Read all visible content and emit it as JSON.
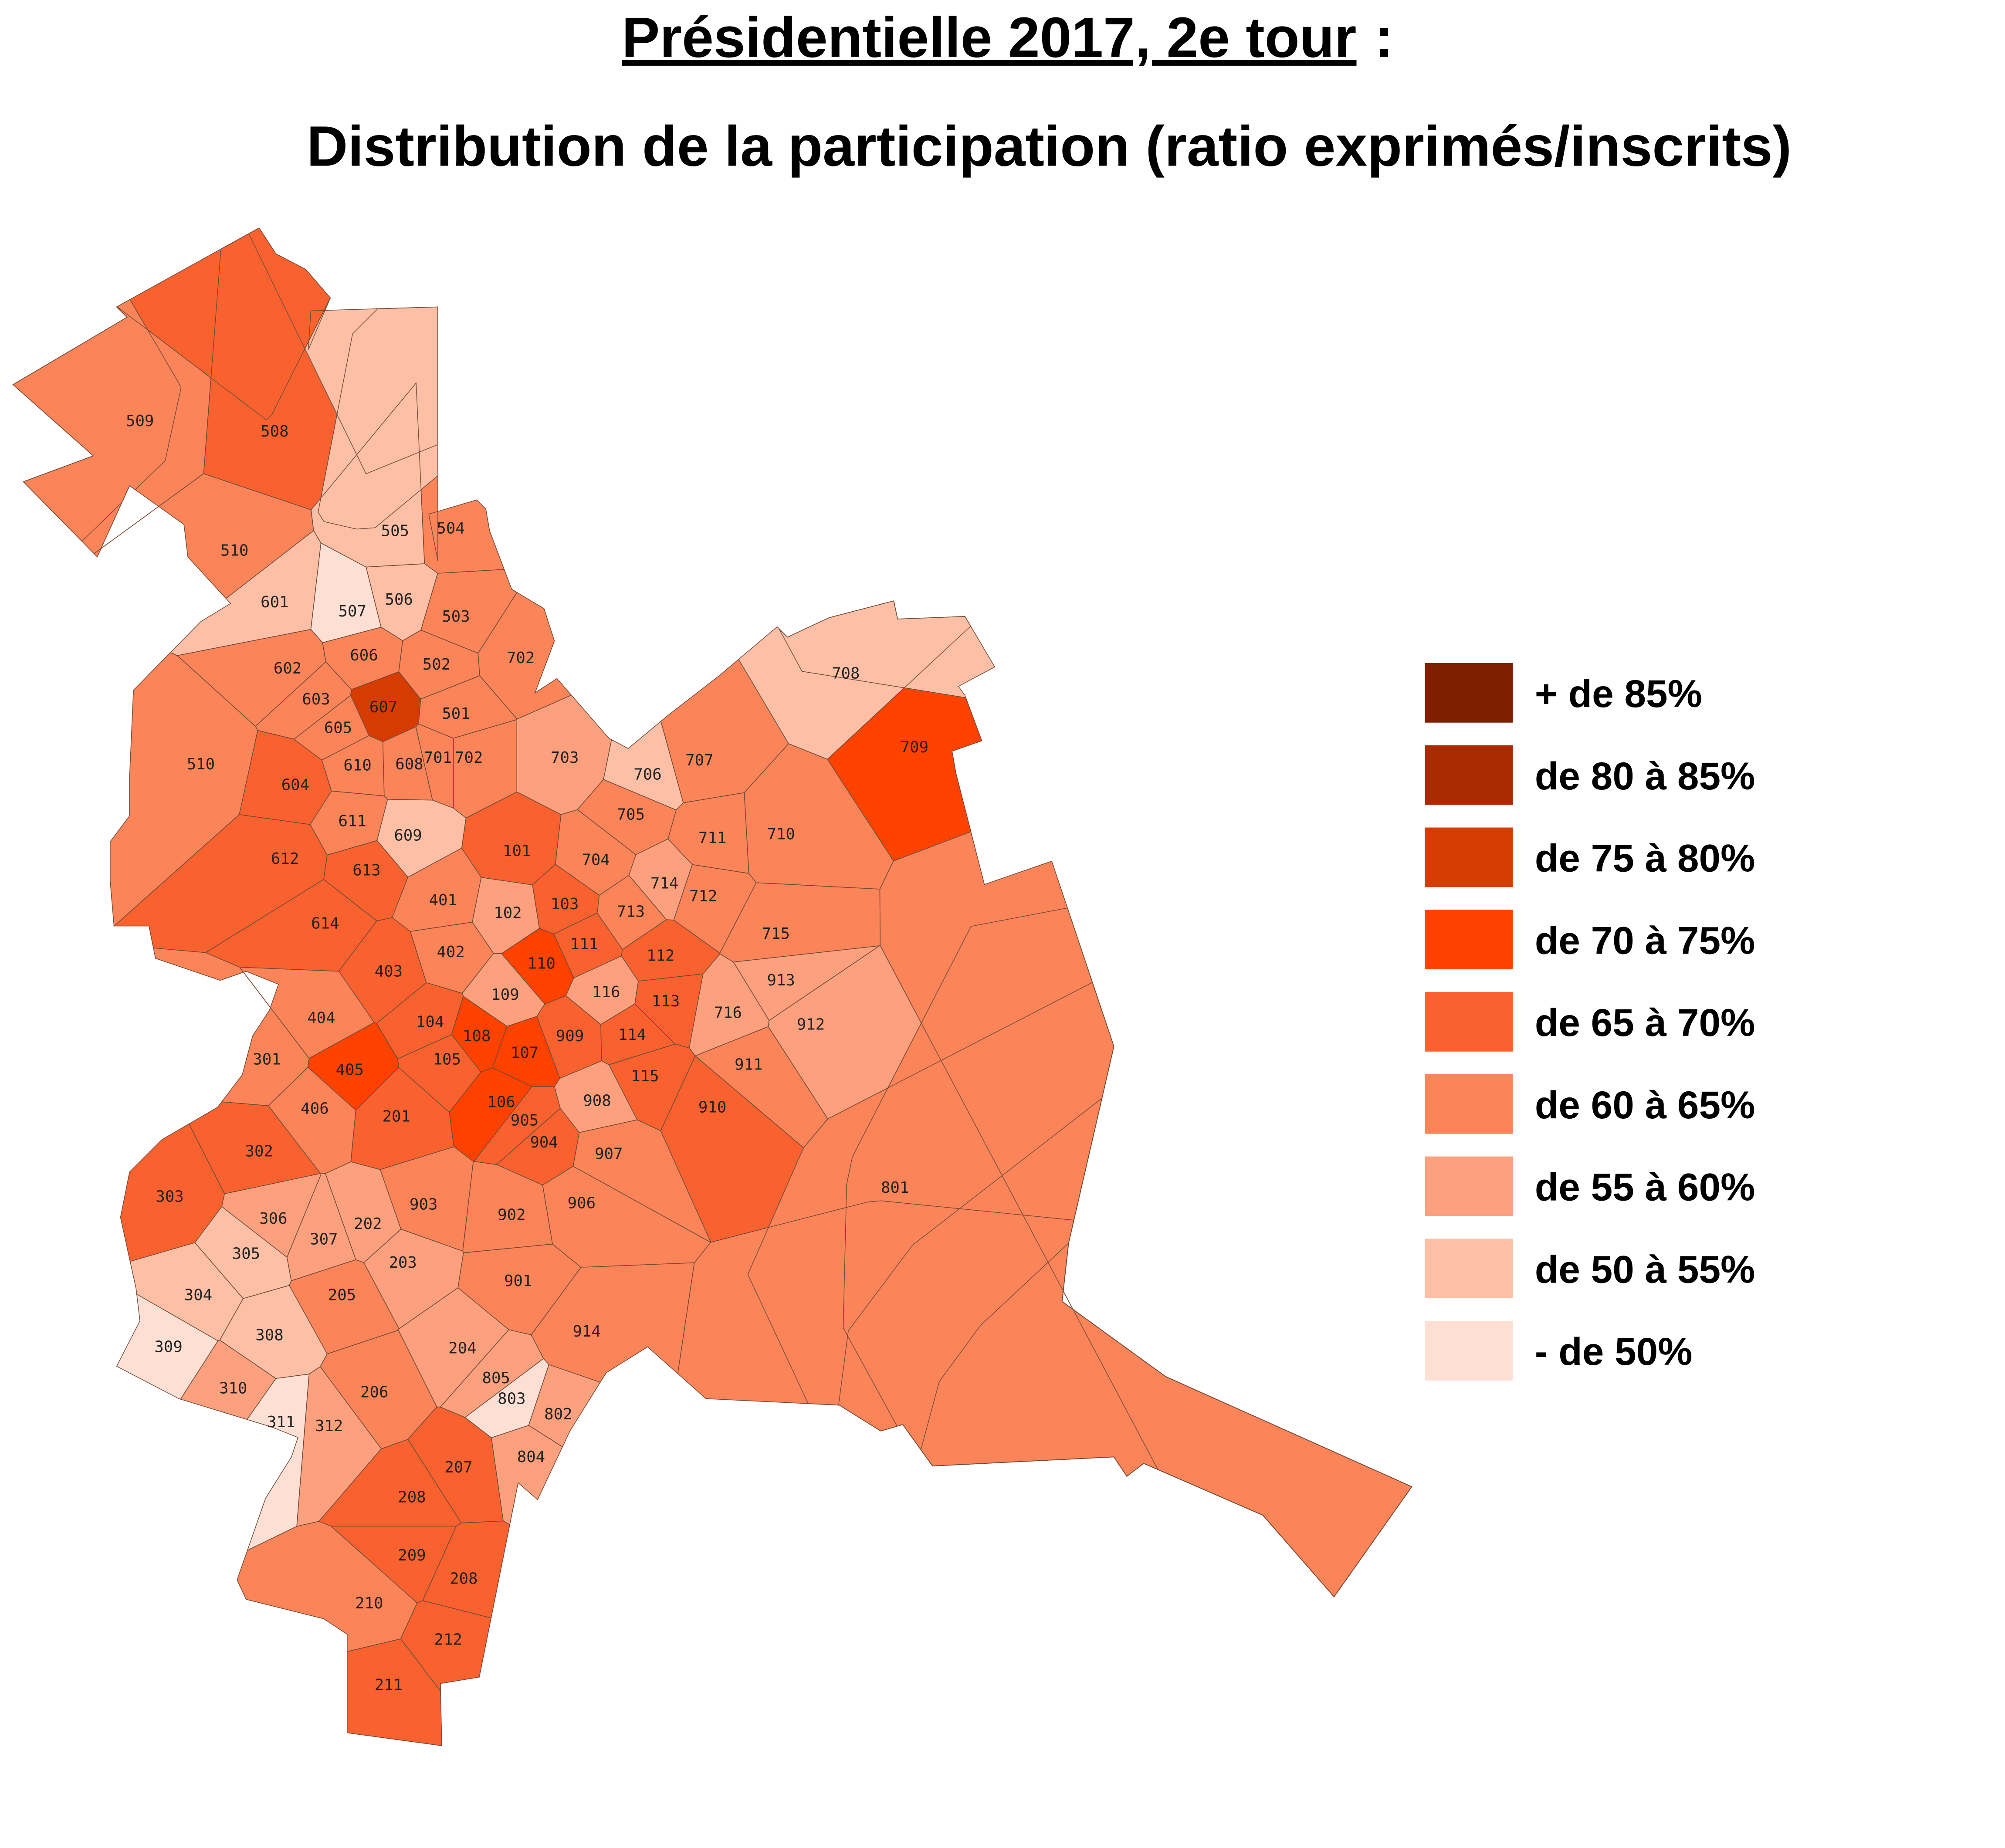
{
  "title": {
    "underlined": "Présidentielle 2017, 2e tour",
    "rest": ":"
  },
  "subtitle": "Distribution de la participation (ratio exprimés/inscrits)",
  "legend": [
    {
      "label": "+ de 85%",
      "color": "#7f1f00"
    },
    {
      "label": "de 80 à 85%",
      "color": "#a82a00"
    },
    {
      "label": "de 75 à 80%",
      "color": "#d63b00"
    },
    {
      "label": "de 70 à 75%",
      "color": "#ff4200"
    },
    {
      "label": "de 65 à 70%",
      "color": "#f9622f"
    },
    {
      "label": "de 60 à 65%",
      "color": "#fc8459"
    },
    {
      "label": "de 55 à 60%",
      "color": "#fda07e"
    },
    {
      "label": "de 50 à 55%",
      "color": "#fdbfa5"
    },
    {
      "label": "- de 50%",
      "color": "#fddfd4"
    }
  ],
  "regions": [
    {
      "label": "509",
      "class": 5
    },
    {
      "label": "508",
      "class": 4
    },
    {
      "label": "505",
      "class": 7
    },
    {
      "label": "504",
      "class": 5
    },
    {
      "label": "510",
      "class": 5
    },
    {
      "label": "601",
      "class": 7
    },
    {
      "label": "507",
      "class": 8
    },
    {
      "label": "506",
      "class": 7
    },
    {
      "label": "503",
      "class": 5
    },
    {
      "label": "702",
      "class": 5
    },
    {
      "label": "606",
      "class": 5
    },
    {
      "label": "602",
      "class": 5
    },
    {
      "label": "502",
      "class": 5
    },
    {
      "label": "603",
      "class": 5
    },
    {
      "label": "607",
      "class": 2
    },
    {
      "label": "501",
      "class": 5
    },
    {
      "label": "605",
      "class": 5
    },
    {
      "label": "610",
      "class": 5
    },
    {
      "label": "608",
      "class": 5
    },
    {
      "label": "701",
      "class": 5
    },
    {
      "label": "702",
      "class": 5
    },
    {
      "label": "604",
      "class": 4
    },
    {
      "label": "510",
      "class": 5
    },
    {
      "label": "703",
      "class": 6
    },
    {
      "label": "706",
      "class": 7
    },
    {
      "label": "707",
      "class": 5
    },
    {
      "label": "708",
      "class": 7
    },
    {
      "label": "709",
      "class": 3
    },
    {
      "label": "611",
      "class": 5
    },
    {
      "label": "609",
      "class": 7
    },
    {
      "label": "705",
      "class": 5
    },
    {
      "label": "711",
      "class": 5
    },
    {
      "label": "710",
      "class": 5
    },
    {
      "label": "612",
      "class": 4
    },
    {
      "label": "613",
      "class": 4
    },
    {
      "label": "101",
      "class": 4
    },
    {
      "label": "704",
      "class": 5
    },
    {
      "label": "714",
      "class": 6
    },
    {
      "label": "712",
      "class": 5
    },
    {
      "label": "401",
      "class": 5
    },
    {
      "label": "102",
      "class": 6
    },
    {
      "label": "103",
      "class": 4
    },
    {
      "label": "713",
      "class": 5
    },
    {
      "label": "715",
      "class": 5
    },
    {
      "label": "614",
      "class": 4
    },
    {
      "label": "111",
      "class": 4
    },
    {
      "label": "112",
      "class": 4
    },
    {
      "label": "402",
      "class": 5
    },
    {
      "label": "403",
      "class": 4
    },
    {
      "label": "110",
      "class": 3
    },
    {
      "label": "913",
      "class": 6
    },
    {
      "label": "109",
      "class": 6
    },
    {
      "label": "116",
      "class": 6
    },
    {
      "label": "113",
      "class": 4
    },
    {
      "label": "716",
      "class": 6
    },
    {
      "label": "404",
      "class": 5
    },
    {
      "label": "104",
      "class": 4
    },
    {
      "label": "108",
      "class": 3
    },
    {
      "label": "912",
      "class": 6
    },
    {
      "label": "114",
      "class": 4
    },
    {
      "label": "301",
      "class": 5
    },
    {
      "label": "405",
      "class": 3
    },
    {
      "label": "107",
      "class": 3
    },
    {
      "label": "909",
      "class": 4
    },
    {
      "label": "105",
      "class": 4
    },
    {
      "label": "911",
      "class": 5
    },
    {
      "label": "115",
      "class": 4
    },
    {
      "label": "406",
      "class": 5
    },
    {
      "label": "201",
      "class": 4
    },
    {
      "label": "106",
      "class": 3
    },
    {
      "label": "905",
      "class": 4
    },
    {
      "label": "908",
      "class": 6
    },
    {
      "label": "910",
      "class": 4
    },
    {
      "label": "904",
      "class": 4
    },
    {
      "label": "302",
      "class": 4
    },
    {
      "label": "907",
      "class": 5
    },
    {
      "label": "801",
      "class": 5
    },
    {
      "label": "303",
      "class": 4
    },
    {
      "label": "903",
      "class": 5
    },
    {
      "label": "306",
      "class": 6
    },
    {
      "label": "202",
      "class": 6
    },
    {
      "label": "902",
      "class": 5
    },
    {
      "label": "906",
      "class": 5
    },
    {
      "label": "307",
      "class": 6
    },
    {
      "label": "305",
      "class": 7
    },
    {
      "label": "203",
      "class": 6
    },
    {
      "label": "901",
      "class": 5
    },
    {
      "label": "304",
      "class": 7
    },
    {
      "label": "205",
      "class": 5
    },
    {
      "label": "914",
      "class": 5
    },
    {
      "label": "308",
      "class": 7
    },
    {
      "label": "204",
      "class": 6
    },
    {
      "label": "309",
      "class": 8
    },
    {
      "label": "805",
      "class": 6
    },
    {
      "label": "206",
      "class": 5
    },
    {
      "label": "310",
      "class": 6
    },
    {
      "label": "803",
      "class": 8
    },
    {
      "label": "802",
      "class": 6
    },
    {
      "label": "311",
      "class": 8
    },
    {
      "label": "312",
      "class": 6
    },
    {
      "label": "207",
      "class": 4
    },
    {
      "label": "804",
      "class": 6
    },
    {
      "label": "208",
      "class": 4
    },
    {
      "label": "209",
      "class": 4
    },
    {
      "label": "208",
      "class": 4
    },
    {
      "label": "210",
      "class": 5
    },
    {
      "label": "212",
      "class": 4
    },
    {
      "label": "211",
      "class": 4
    }
  ]
}
